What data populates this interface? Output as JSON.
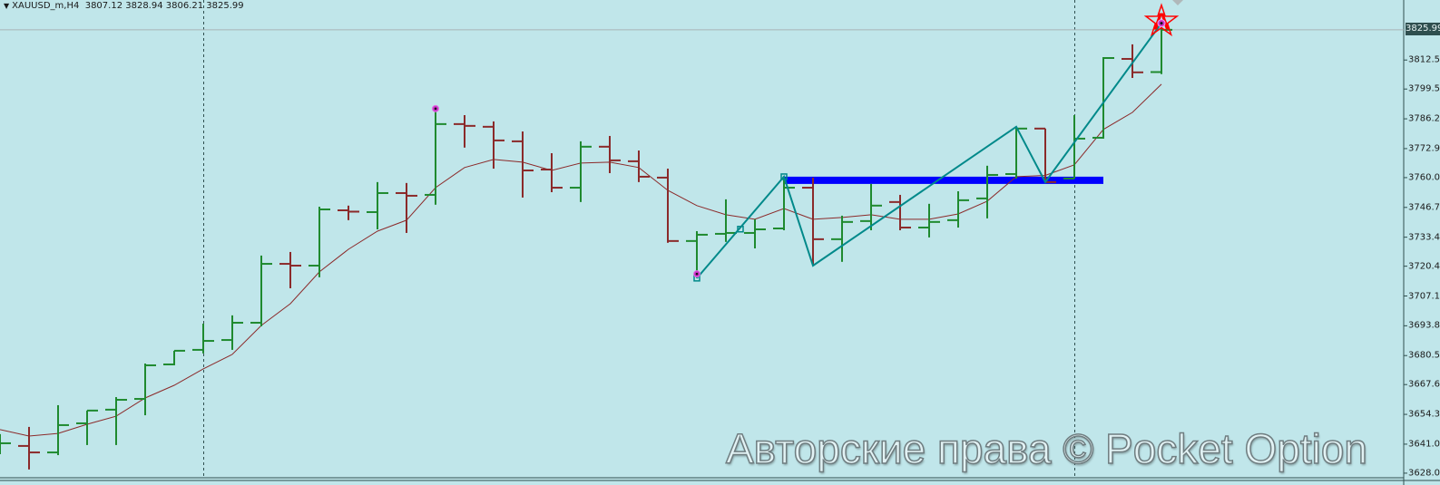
{
  "header": {
    "symbol_timeframe": "XAUUSD_m,H4",
    "ohlc_text": "3807.12 3828.94 3806.21 3825.99"
  },
  "current_price_label": "3825.99",
  "watermark": "Авторские права © Pocket Option",
  "marker_label": "A",
  "colors": {
    "background": "#c0e6ea",
    "bull": "#1f8a2f",
    "bear": "#8b2a2a",
    "moving_average": "#8b2a2a",
    "zigzag": "#00898a",
    "level": "#0000ff",
    "marker": "#ff0000",
    "dot": "#cc33cc"
  },
  "chart_data": {
    "type": "bar",
    "style": "ohlc",
    "title": "",
    "xlabel": "",
    "ylabel": "",
    "ylim": [
      3626.0,
      3839.3
    ],
    "grid": false,
    "y_ticks": [
      "3812.50",
      "3799.55",
      "3786.25",
      "3772.95",
      "3760.00",
      "3746.70",
      "3733.40",
      "3720.45",
      "3707.15",
      "3693.85",
      "3680.55",
      "3667.60",
      "3654.30",
      "3641.00",
      "3628.05"
    ],
    "bars": [
      [
        3638.5,
        3645.5,
        3636.5,
        3641.4
      ],
      [
        3640.2,
        3648.7,
        3629.7,
        3637.3
      ],
      [
        3637.3,
        3658.4,
        3636.1,
        3649.5
      ],
      [
        3650.3,
        3656.0,
        3640.6,
        3656.0
      ],
      [
        3656.4,
        3662.0,
        3640.6,
        3660.8
      ],
      [
        3661.2,
        3677.0,
        3653.9,
        3676.2
      ],
      [
        3676.6,
        3682.7,
        3676.2,
        3682.7
      ],
      [
        3683.1,
        3694.8,
        3681.5,
        3687.1
      ],
      [
        3687.5,
        3698.5,
        3683.1,
        3695.2
      ],
      [
        3695.2,
        3725.2,
        3693.6,
        3721.5
      ],
      [
        3721.5,
        3726.8,
        3710.6,
        3720.7
      ],
      [
        3720.7,
        3747.0,
        3715.5,
        3745.8
      ],
      [
        3745.4,
        3747.5,
        3741.0,
        3744.8
      ],
      [
        3744.6,
        3758.0,
        3736.9,
        3753.1
      ],
      [
        3753.1,
        3757.6,
        3735.3,
        3751.9
      ],
      [
        3752.3,
        3790.8,
        3747.9,
        3783.9
      ],
      [
        3783.9,
        3787.9,
        3773.4,
        3783.1
      ],
      [
        3782.7,
        3785.1,
        3764.0,
        3776.6
      ],
      [
        3776.2,
        3780.6,
        3751.1,
        3763.2
      ],
      [
        3763.6,
        3770.9,
        3753.5,
        3755.5
      ],
      [
        3755.5,
        3776.2,
        3749.1,
        3773.8
      ],
      [
        3773.8,
        3778.6,
        3762.0,
        3767.7
      ],
      [
        3767.3,
        3772.1,
        3758.0,
        3760.4
      ],
      [
        3760.0,
        3764.0,
        3730.9,
        3731.7
      ],
      [
        3731.7,
        3736.1,
        3715.1,
        3734.5
      ],
      [
        3734.9,
        3750.3,
        3731.3,
        3735.3
      ],
      [
        3735.3,
        3741.4,
        3728.4,
        3736.9
      ],
      [
        3737.3,
        3760.4,
        3736.5,
        3755.5
      ],
      [
        3755.5,
        3760.0,
        3720.7,
        3732.5
      ],
      [
        3732.5,
        3743.0,
        3722.4,
        3740.2
      ],
      [
        3740.6,
        3757.2,
        3736.5,
        3747.5
      ],
      [
        3749.1,
        3752.3,
        3736.5,
        3737.7
      ],
      [
        3737.7,
        3748.3,
        3733.3,
        3740.2
      ],
      [
        3741.0,
        3753.9,
        3737.7,
        3749.9
      ],
      [
        3750.7,
        3765.3,
        3741.8,
        3761.2
      ],
      [
        3761.6,
        3782.7,
        3759.6,
        3781.9
      ],
      [
        3781.9,
        3781.9,
        3758.0,
        3758.0
      ],
      [
        3759.6,
        3787.9,
        3759.6,
        3777.4
      ],
      [
        3777.8,
        3813.8,
        3777.4,
        3813.4
      ],
      [
        3813.0,
        3819.5,
        3804.5,
        3807.0
      ],
      [
        3807.12,
        3828.94,
        3806.21,
        3825.99
      ]
    ],
    "moving_average": [
      3647.5,
      3644.6,
      3645.8,
      3649.9,
      3653.5,
      3661.6,
      3667.3,
      3674.6,
      3681.1,
      3694.0,
      3703.7,
      3717.9,
      3728.0,
      3736.1,
      3741.0,
      3755.5,
      3764.5,
      3768.1,
      3766.9,
      3763.2,
      3766.5,
      3766.9,
      3764.5,
      3754.3,
      3747.5,
      3743.4,
      3741.4,
      3746.2,
      3741.4,
      3742.2,
      3743.4,
      3741.4,
      3741.4,
      3743.8,
      3749.5,
      3760.4,
      3761.0,
      3765.7,
      3781.5,
      3789.1,
      3801.7
    ],
    "zigzag": [
      [
        24,
        3715.1
      ],
      [
        27,
        3760.4
      ],
      [
        28,
        3720.7
      ],
      [
        35,
        3782.7
      ],
      [
        36,
        3758.0
      ],
      [
        40,
        3828.94
      ]
    ],
    "zigzag_square_markers": [
      [
        24,
        3715.1
      ],
      [
        25.5,
        3737.0
      ],
      [
        27,
        3760.4
      ]
    ],
    "level_line": {
      "price": 3758.8,
      "from_bar": 27,
      "to_bar": 38
    },
    "dot_markers": [
      [
        15,
        3790.8
      ],
      [
        24,
        3717.0
      ],
      [
        40,
        3828.94
      ]
    ],
    "current_price": 3825.99,
    "period_separators_at_bars": [
      7,
      37
    ]
  }
}
